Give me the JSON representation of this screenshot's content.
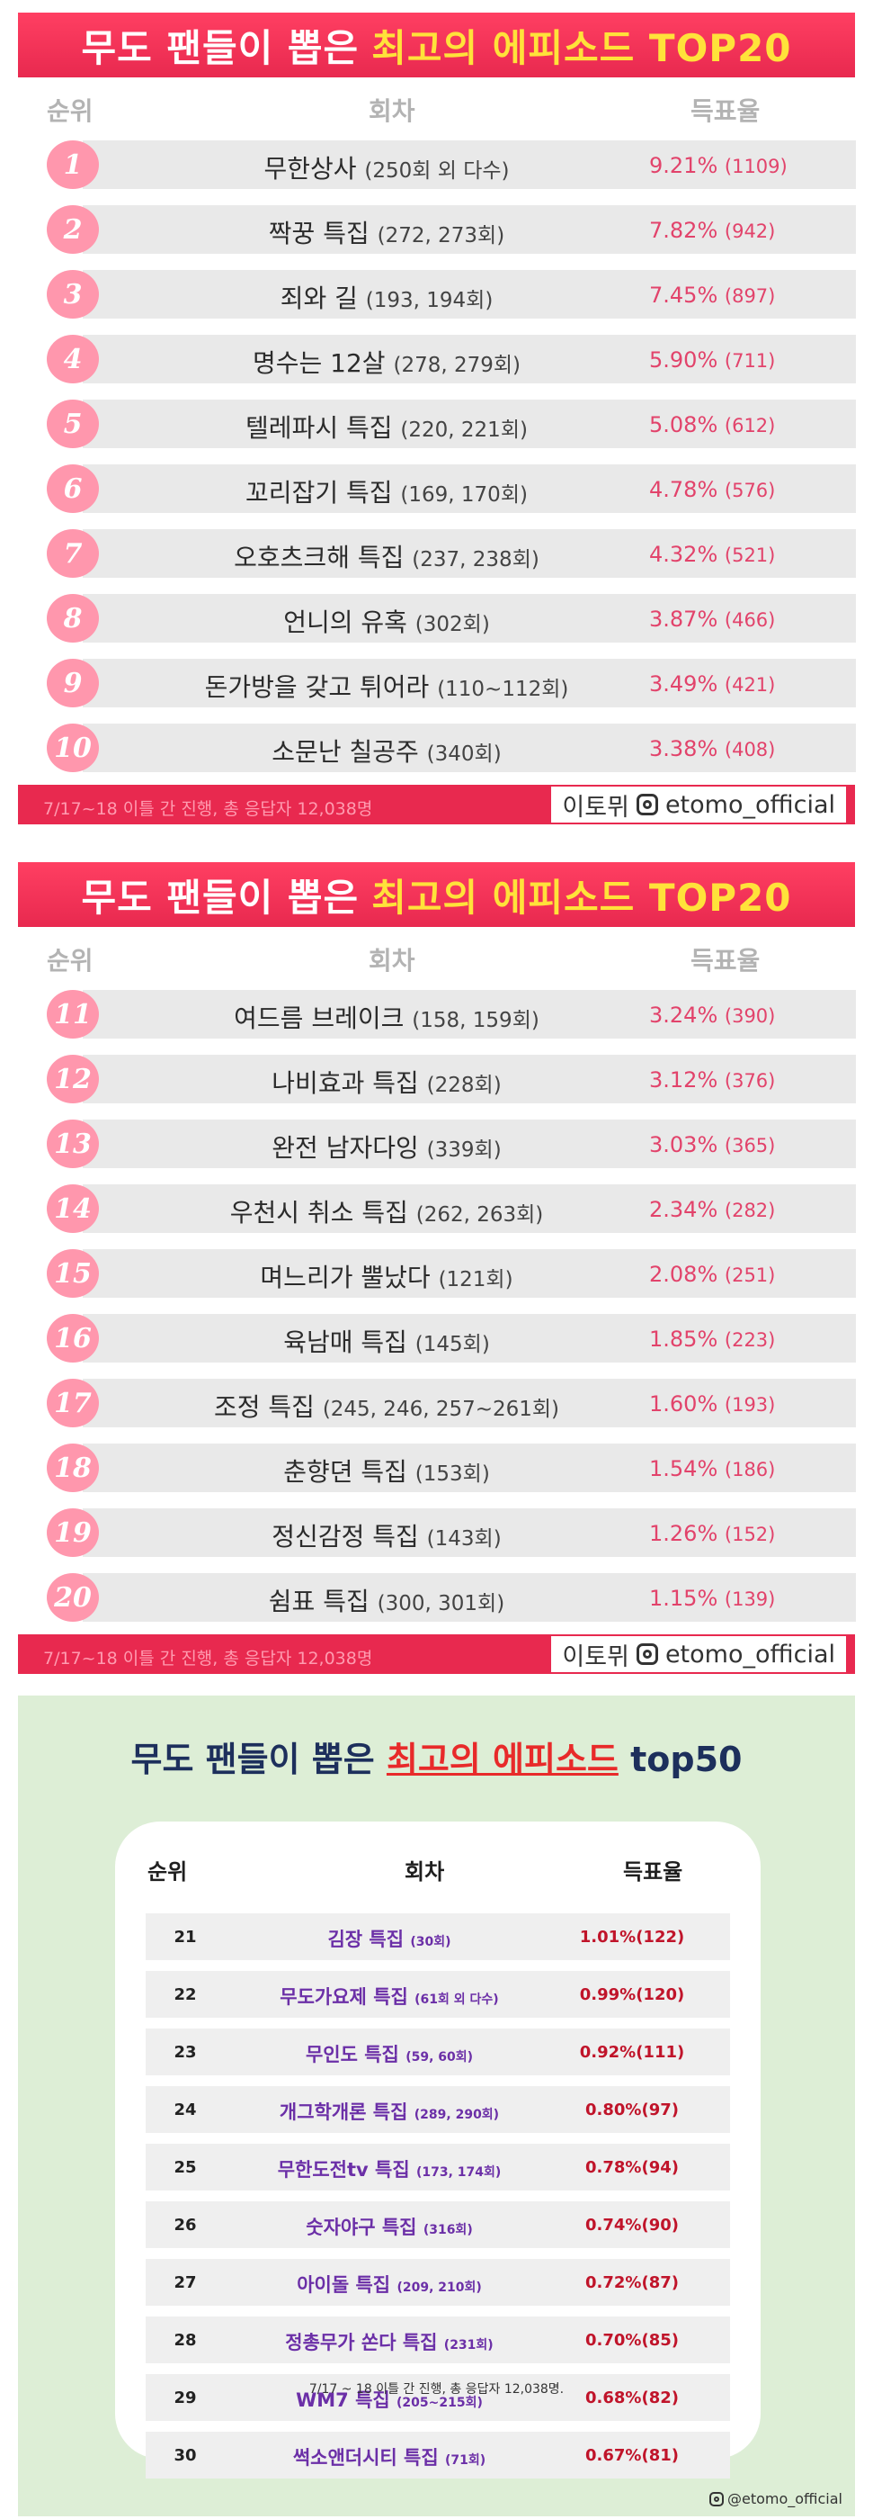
{
  "top20_part1": {
    "title_white": "무도 팬들이 뽑은",
    "title_yellow": "최고의 에피소드 TOP20",
    "headers": {
      "rank": "순위",
      "episode": "회차",
      "vote": "득표율"
    },
    "rows": [
      {
        "rank": "1",
        "name": "무한상사",
        "eps": "(250회 외 다수)",
        "pct": "9.21%",
        "cnt": "(1109)"
      },
      {
        "rank": "2",
        "name": "짝꿍 특집",
        "eps": "(272, 273회)",
        "pct": "7.82%",
        "cnt": "(942)"
      },
      {
        "rank": "3",
        "name": "죄와 길",
        "eps": "(193, 194회)",
        "pct": "7.45%",
        "cnt": "(897)"
      },
      {
        "rank": "4",
        "name": "명수는 12살",
        "eps": "(278, 279회)",
        "pct": "5.90%",
        "cnt": "(711)"
      },
      {
        "rank": "5",
        "name": "텔레파시 특집",
        "eps": "(220, 221회)",
        "pct": "5.08%",
        "cnt": "(612)"
      },
      {
        "rank": "6",
        "name": "꼬리잡기 특집",
        "eps": "(169, 170회)",
        "pct": "4.78%",
        "cnt": "(576)"
      },
      {
        "rank": "7",
        "name": "오호츠크해 특집",
        "eps": "(237, 238회)",
        "pct": "4.32%",
        "cnt": "(521)"
      },
      {
        "rank": "8",
        "name": "언니의 유혹",
        "eps": "(302회)",
        "pct": "3.87%",
        "cnt": "(466)"
      },
      {
        "rank": "9",
        "name": "돈가방을 갖고 튀어라",
        "eps": "(110~112회)",
        "pct": "3.49%",
        "cnt": "(421)"
      },
      {
        "rank": "10",
        "name": "소문난 칠공주",
        "eps": "(340회)",
        "pct": "3.38%",
        "cnt": "(408)"
      }
    ],
    "footer_note": "7/17~18 이틀 간 진행, 총 응답자 12,038명",
    "credit_name": "이토뮈",
    "credit_handle": "etomo_official"
  },
  "top20_part2": {
    "title_white": "무도 팬들이 뽑은",
    "title_yellow": "최고의 에피소드 TOP20",
    "headers": {
      "rank": "순위",
      "episode": "회차",
      "vote": "득표율"
    },
    "rows": [
      {
        "rank": "11",
        "name": "여드름 브레이크",
        "eps": "(158, 159회)",
        "pct": "3.24%",
        "cnt": "(390)"
      },
      {
        "rank": "12",
        "name": "나비효과 특집",
        "eps": "(228회)",
        "pct": "3.12%",
        "cnt": "(376)"
      },
      {
        "rank": "13",
        "name": "완전 남자다잉",
        "eps": "(339회)",
        "pct": "3.03%",
        "cnt": "(365)"
      },
      {
        "rank": "14",
        "name": "우천시 취소 특집",
        "eps": "(262, 263회)",
        "pct": "2.34%",
        "cnt": "(282)"
      },
      {
        "rank": "15",
        "name": "며느리가 뿔났다",
        "eps": "(121회)",
        "pct": "2.08%",
        "cnt": "(251)"
      },
      {
        "rank": "16",
        "name": "육남매 특집",
        "eps": "(145회)",
        "pct": "1.85%",
        "cnt": "(223)"
      },
      {
        "rank": "17",
        "name": "조정 특집",
        "eps": "(245, 246, 257~261회)",
        "pct": "1.60%",
        "cnt": "(193)"
      },
      {
        "rank": "18",
        "name": "춘향뎐 특집",
        "eps": "(153회)",
        "pct": "1.54%",
        "cnt": "(186)"
      },
      {
        "rank": "19",
        "name": "정신감정 특집",
        "eps": "(143회)",
        "pct": "1.26%",
        "cnt": "(152)"
      },
      {
        "rank": "20",
        "name": "쉼표 특집",
        "eps": "(300, 301회)",
        "pct": "1.15%",
        "cnt": "(139)"
      }
    ],
    "footer_note": "7/17~18 이틀 간 진행, 총 응답자 12,038명",
    "credit_name": "이토뮈",
    "credit_handle": "etomo_official"
  },
  "top50_part3": {
    "title_pre": "무도 팬들이 뽑은",
    "title_hl": "최고의 에피소드",
    "title_post": "top50",
    "headers": {
      "rank": "순위",
      "episode": "회차",
      "vote": "득표율"
    },
    "rows": [
      {
        "rank": "21",
        "name": "김장 특집",
        "eps": "(30회)",
        "vote": "1.01%(122)"
      },
      {
        "rank": "22",
        "name": "무도가요제 특집",
        "eps": "(61회 외 다수)",
        "vote": "0.99%(120)"
      },
      {
        "rank": "23",
        "name": "무인도 특집",
        "eps": "(59, 60회)",
        "vote": "0.92%(111)"
      },
      {
        "rank": "24",
        "name": "개그학개론 특집",
        "eps": "(289, 290회)",
        "vote": "0.80%(97)"
      },
      {
        "rank": "25",
        "name": "무한도전tv 특집",
        "eps": "(173, 174회)",
        "vote": "0.78%(94)"
      },
      {
        "rank": "26",
        "name": "숫자야구 특집",
        "eps": "(316회)",
        "vote": "0.74%(90)"
      },
      {
        "rank": "27",
        "name": "아이돌 특집",
        "eps": "(209, 210회)",
        "vote": "0.72%(87)"
      },
      {
        "rank": "28",
        "name": "정총무가 쏜다 특집",
        "eps": "(231회)",
        "vote": "0.70%(85)"
      },
      {
        "rank": "29",
        "name": "WM7 특집",
        "eps": "(205~215회)",
        "vote": "0.68%(82)"
      },
      {
        "rank": "30",
        "name": "썩소앤더시티 특집",
        "eps": "(71회)",
        "vote": "0.67%(81)"
      }
    ],
    "note": "7/17 ~ 18 이틀 간 진행, 총 응답자 12,038명.",
    "credit_handle": "@etomo_official"
  }
}
